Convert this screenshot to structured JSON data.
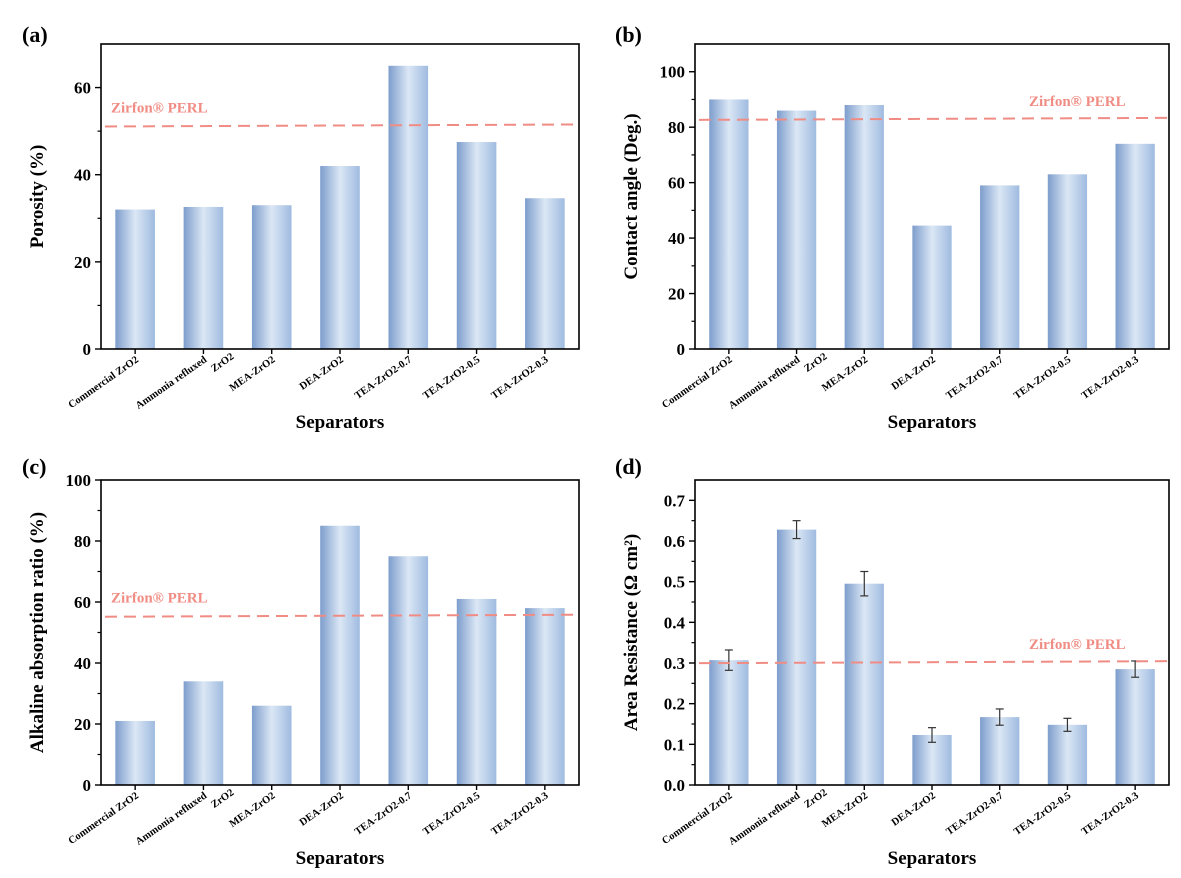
{
  "figure": {
    "panels": [
      {
        "label": "(a)"
      },
      {
        "label": "(b)"
      },
      {
        "label": "(c)"
      },
      {
        "label": "(d)"
      }
    ]
  },
  "colors": {
    "bar_edge": "#7d9dcc",
    "bar_center": "#dbe7f5",
    "bar_side": "#9fbbe0",
    "reference_line": "#f08c84",
    "axis": "#000000"
  },
  "chart_data": [
    {
      "panel": "(a)",
      "type": "bar",
      "categories": [
        "Commercial ZrO2",
        "Ammonia refluxed ZrO2",
        "MEA-ZrO2",
        "DEA-ZrO2",
        "TEA-ZrO2-0.7",
        "TEA-ZrO2-0.5",
        "TEA-ZrO2-0.3"
      ],
      "category_lines": [
        [
          "Commercial ZrO2"
        ],
        [
          "Ammonia refluxed",
          "ZrO2"
        ],
        [
          "MEA-ZrO2"
        ],
        [
          "DEA-ZrO2"
        ],
        [
          "TEA-ZrO2-0.7"
        ],
        [
          "TEA-ZrO2-0.5"
        ],
        [
          "TEA-ZrO2-0.3"
        ]
      ],
      "values": [
        32,
        32.6,
        33,
        42,
        65,
        47.5,
        34.6
      ],
      "xlabel": "Separators",
      "ylabel": "Porosity (%)",
      "ylim": [
        0,
        70
      ],
      "yticks": [
        0,
        20,
        40,
        60
      ],
      "yticks_minor": [
        10,
        30,
        50
      ],
      "tick_decimals": 0,
      "reference": {
        "label": "Zirfon® PERL",
        "value": 51.3,
        "label_position": "left"
      },
      "error_bars": null
    },
    {
      "panel": "(b)",
      "type": "bar",
      "categories": [
        "Commercial ZrO2",
        "Ammonia refluxed ZrO2",
        "MEA-ZrO2",
        "DEA-ZrO2",
        "TEA-ZrO2-0.7",
        "TEA-ZrO2-0.5",
        "TEA-ZrO2-0.3"
      ],
      "category_lines": [
        [
          "Commercial ZrO2"
        ],
        [
          "Ammonia refluxed",
          "ZrO2"
        ],
        [
          "MEA-ZrO2"
        ],
        [
          "DEA-ZrO2"
        ],
        [
          "TEA-ZrO2-0.7"
        ],
        [
          "TEA-ZrO2-0.5"
        ],
        [
          "TEA-ZrO2-0.3"
        ]
      ],
      "values": [
        90,
        86,
        88,
        44.5,
        59,
        63,
        74
      ],
      "xlabel": "Separators",
      "ylabel": "Contact angle (Deg.)",
      "ylim": [
        0,
        110
      ],
      "yticks": [
        0,
        20,
        40,
        60,
        80,
        100
      ],
      "yticks_minor": [
        10,
        30,
        50,
        70,
        90
      ],
      "tick_decimals": 0,
      "reference": {
        "label": "Zirfon® PERL",
        "value": 83,
        "label_position": "right"
      },
      "error_bars": null
    },
    {
      "panel": "(c)",
      "type": "bar",
      "categories": [
        "Commercial ZrO2",
        "Ammonia refluxed ZrO2",
        "MEA-ZrO2",
        "DEA-ZrO2",
        "TEA-ZrO2-0.7",
        "TEA-ZrO2-0.5",
        "TEA-ZrO2-0.3"
      ],
      "category_lines": [
        [
          "Commercial ZrO2"
        ],
        [
          "Ammonia refluxed",
          "ZrO2"
        ],
        [
          "MEA-ZrO2"
        ],
        [
          "DEA-ZrO2"
        ],
        [
          "TEA-ZrO2-0.7"
        ],
        [
          "TEA-ZrO2-0.5"
        ],
        [
          "TEA-ZrO2-0.3"
        ]
      ],
      "values": [
        21,
        34,
        26,
        85,
        75,
        61,
        58
      ],
      "xlabel": "Separators",
      "ylabel": "Alkaline absorption ratio (%)",
      "ylim": [
        0,
        100
      ],
      "yticks": [
        0,
        20,
        40,
        60,
        80,
        100
      ],
      "yticks_minor": [
        10,
        30,
        50,
        70,
        90
      ],
      "tick_decimals": 0,
      "reference": {
        "label": "Zirfon® PERL",
        "value": 55.5,
        "label_position": "left"
      },
      "error_bars": null
    },
    {
      "panel": "(d)",
      "type": "bar",
      "categories": [
        "Commercial ZrO2",
        "Ammonia refluxed ZrO2",
        "MEA-ZrO2",
        "DEA-ZrO2",
        "TEA-ZrO2-0.7",
        "TEA-ZrO2-0.5",
        "TEA-ZrO2-0.3"
      ],
      "category_lines": [
        [
          "Commercial ZrO2"
        ],
        [
          "Ammonia refluxed",
          "ZrO2"
        ],
        [
          "MEA-ZrO2"
        ],
        [
          "DEA-ZrO2"
        ],
        [
          "TEA-ZrO2-0.7"
        ],
        [
          "TEA-ZrO2-0.5"
        ],
        [
          "TEA-ZrO2-0.3"
        ]
      ],
      "values": [
        0.307,
        0.628,
        0.495,
        0.123,
        0.167,
        0.148,
        0.285
      ],
      "xlabel": "Separators",
      "ylabel": "Area Resistance (Ω cm²)",
      "ylim": [
        0,
        0.75
      ],
      "yticks": [
        0,
        0.1,
        0.2,
        0.3,
        0.4,
        0.5,
        0.6,
        0.7
      ],
      "yticks_minor": [
        0.05,
        0.15,
        0.25,
        0.35,
        0.45,
        0.55,
        0.65
      ],
      "tick_decimals": 1,
      "reference": {
        "label": "Zirfon® PERL",
        "value": 0.302,
        "label_position": "right"
      },
      "error_bars": [
        0.025,
        0.022,
        0.03,
        0.018,
        0.02,
        0.016,
        0.02
      ]
    }
  ]
}
